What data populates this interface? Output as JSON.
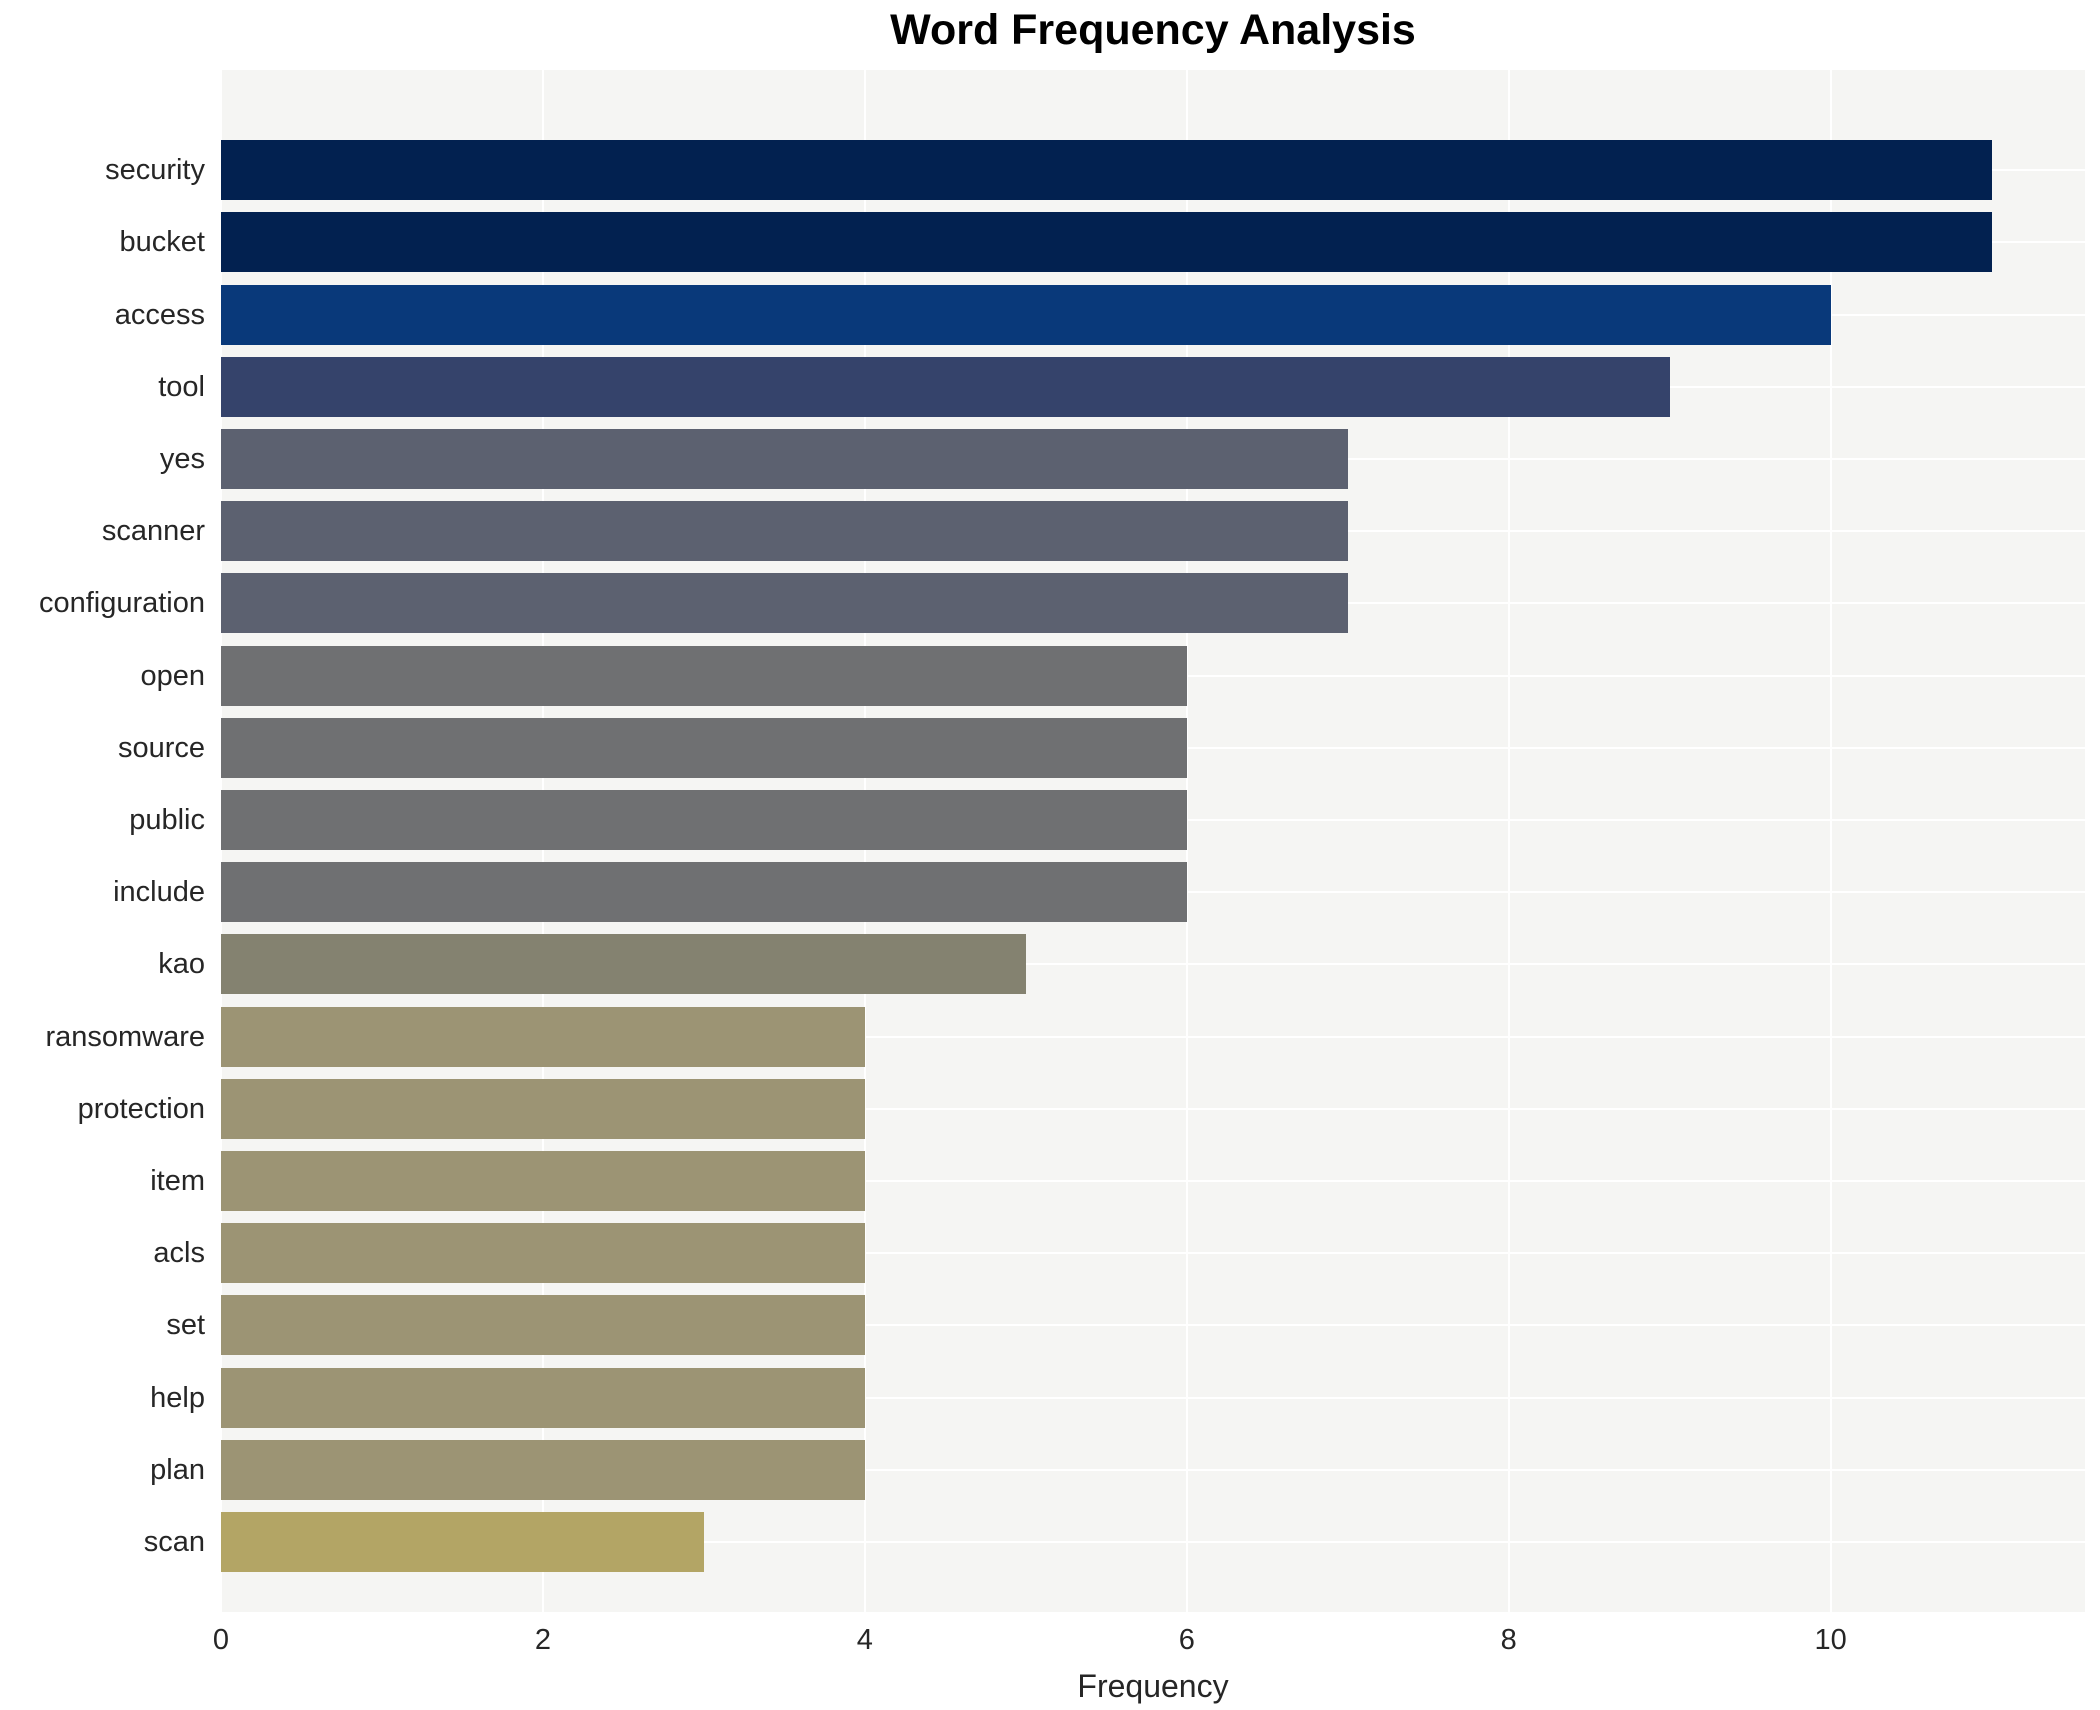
{
  "chart_data": {
    "type": "bar",
    "orientation": "horizontal",
    "title": "Word Frequency Analysis",
    "xlabel": "Frequency",
    "ylabel": "",
    "categories": [
      "security",
      "bucket",
      "access",
      "tool",
      "yes",
      "scanner",
      "configuration",
      "open",
      "source",
      "public",
      "include",
      "kao",
      "ransomware",
      "protection",
      "item",
      "acls",
      "set",
      "help",
      "plan",
      "scan"
    ],
    "values": [
      11,
      11,
      10,
      9,
      7,
      7,
      7,
      6,
      6,
      6,
      6,
      5,
      4,
      4,
      4,
      4,
      4,
      4,
      4,
      3
    ],
    "bar_colors": [
      "#022150",
      "#022150",
      "#09397a",
      "#35436b",
      "#5c6170",
      "#5c6170",
      "#5c6170",
      "#6f7072",
      "#6f7072",
      "#6f7072",
      "#6f7072",
      "#848270",
      "#9c9474",
      "#9c9474",
      "#9c9474",
      "#9c9474",
      "#9c9474",
      "#9c9474",
      "#9c9474",
      "#b3a565"
    ],
    "xlim": [
      0,
      11.58
    ],
    "xticks": [
      "0",
      "2",
      "4",
      "6",
      "8",
      "10"
    ],
    "xtick_values": [
      0,
      2,
      4,
      6,
      8,
      10
    ],
    "grid": true,
    "grid_color": "#ffffff",
    "plot_background": "#f5f5f3",
    "legend": false
  },
  "styles": {
    "title_color": "#000000",
    "tick_label_color": "#262626",
    "axis_label_color": "#262626",
    "page_background": "#ffffff"
  }
}
